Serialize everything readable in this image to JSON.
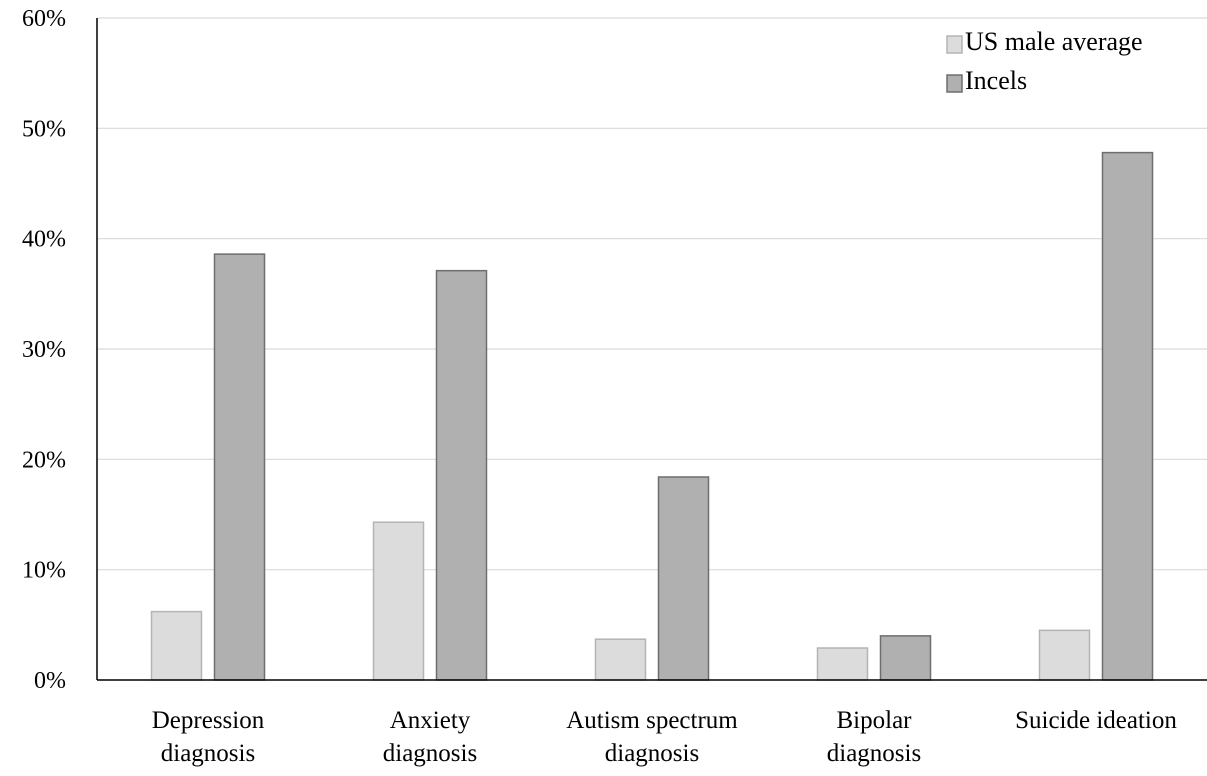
{
  "chart_data": {
    "type": "bar",
    "categories": [
      [
        "Depression",
        "diagnosis"
      ],
      [
        "Anxiety",
        "diagnosis"
      ],
      [
        "Autism spectrum",
        "diagnosis"
      ],
      [
        "Bipolar",
        "diagnosis"
      ],
      [
        "Suicide ideation"
      ]
    ],
    "series": [
      {
        "name": "US male average",
        "values": [
          6.2,
          14.3,
          3.7,
          2.9,
          4.5
        ],
        "color": "#dcdcdc",
        "stroke": "#b4b4b4"
      },
      {
        "name": "Incels",
        "values": [
          38.6,
          37.1,
          18.4,
          4.0,
          47.8
        ],
        "color": "#b0b0b0",
        "stroke": "#6e6e6e"
      }
    ],
    "ylim": [
      0,
      60
    ],
    "yticks": [
      0,
      10,
      20,
      30,
      40,
      50,
      60
    ],
    "ytick_labels": [
      "0%",
      "10%",
      "20%",
      "30%",
      "40%",
      "50%",
      "60%"
    ],
    "grid": true,
    "legend_position": "top-right",
    "title": "",
    "xlabel": "",
    "ylabel": ""
  }
}
